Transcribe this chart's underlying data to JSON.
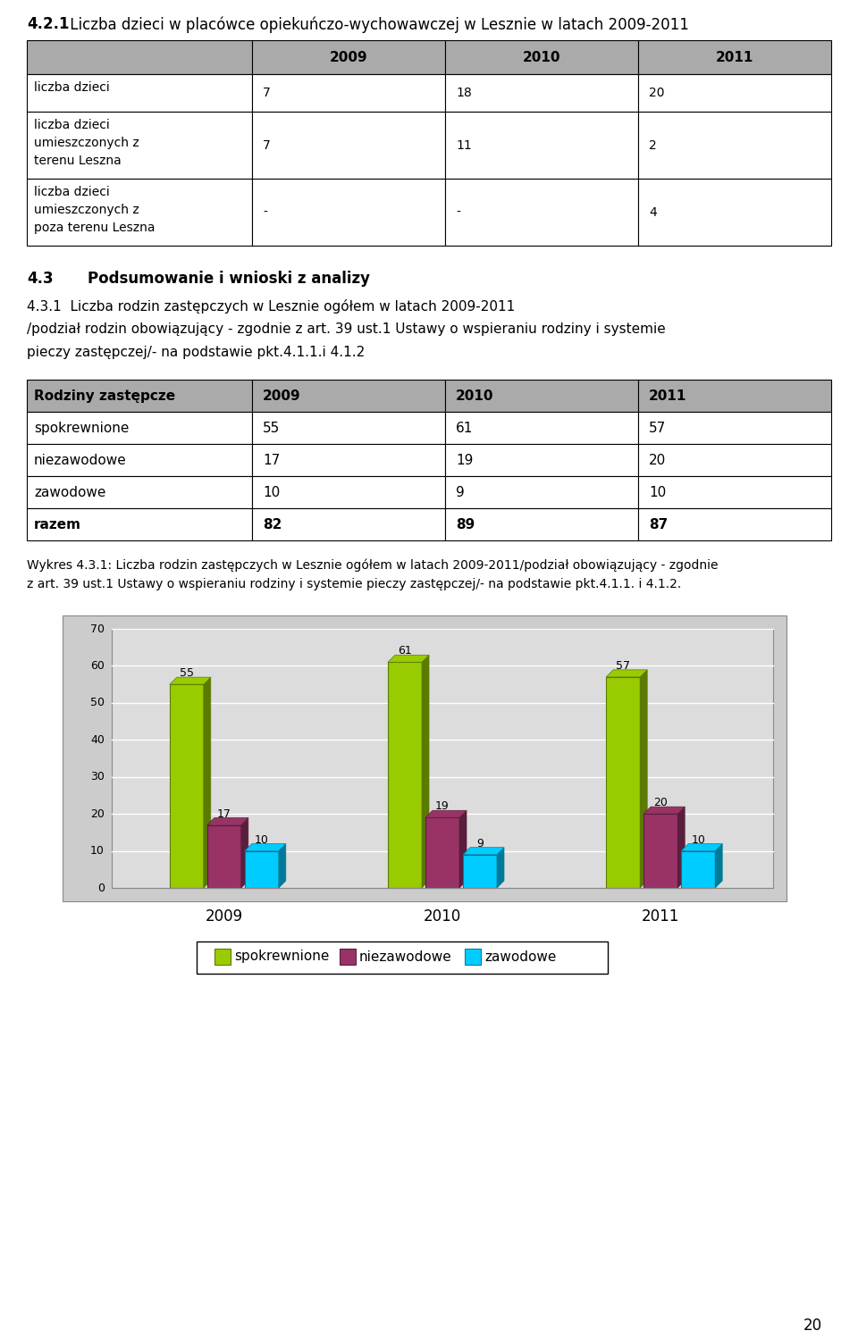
{
  "page_title_bold": "4.2.1",
  "page_title_rest": " Liczba dzieci w placówce opiekuńczo-wychowawczej w Lesznie w latach 2009-2011",
  "table1_header": [
    "",
    "2009",
    "2010",
    "2011"
  ],
  "table1_rows": [
    [
      "liczba dzieci",
      "7",
      "18",
      "20"
    ],
    [
      "liczba dzieci\numieszczonych z\nterenu Leszna",
      "7",
      "11",
      "2"
    ],
    [
      "liczba dzieci\numieszczonych z\npoza terenu Leszna",
      "-",
      "-",
      "4"
    ]
  ],
  "section_bold": "4.3",
  "section_rest": "    Podsumowanie i wnioski z analizy",
  "subsec_lines": [
    "4.3.1  Liczba rodzin zastępczych w Lesznie ogółem w latach 2009-2011",
    "/podział rodzin obowiązujący - zgodnie z art. 39 ust.1 Ustawy o wspieraniu rodziny i systemie",
    "pieczy zastępczej/- na podstawie pkt.4.1.1.i 4.1.2"
  ],
  "table2_header": [
    "Rodziny zastępcze",
    "2009",
    "2010",
    "2011"
  ],
  "table2_rows": [
    [
      "spokrewnione",
      "55",
      "61",
      "57"
    ],
    [
      "niezawodowe",
      "17",
      "19",
      "20"
    ],
    [
      "zawodowe",
      "10",
      "9",
      "10"
    ],
    [
      "razem",
      "82",
      "89",
      "87"
    ]
  ],
  "table2_bold_rows": [
    3
  ],
  "caption_lines": [
    "Wykres 4.3.1: Liczba rodzin zastępczych w Lesznie ogółem w latach 2009-2011/podział obowiązujący - zgodnie",
    "z art. 39 ust.1 Ustawy o wspieraniu rodziny i systemie pieczy zastępczej/- na podstawie pkt.4.1.1. i 4.1.2."
  ],
  "years": [
    "2009",
    "2010",
    "2011"
  ],
  "spokrewnione": [
    55,
    61,
    57
  ],
  "niezawodowe": [
    17,
    19,
    20
  ],
  "zawodowe": [
    10,
    9,
    10
  ],
  "color_spok": "#99CC00",
  "color_spok_dark": "#5a7a00",
  "color_niez": "#993366",
  "color_niez_dark": "#5a1e3d",
  "color_zawo": "#00CCFF",
  "color_zawo_dark": "#007a99",
  "color_header_bg": "#AAAAAA",
  "color_chart_outer": "#CCCCCC",
  "color_chart_inner": "#DCDCDC",
  "ylim": [
    0,
    70
  ],
  "yticks": [
    0,
    10,
    20,
    30,
    40,
    50,
    60,
    70
  ],
  "page_number": "20",
  "bar_width": 0.2,
  "bar_depth": 0.06
}
